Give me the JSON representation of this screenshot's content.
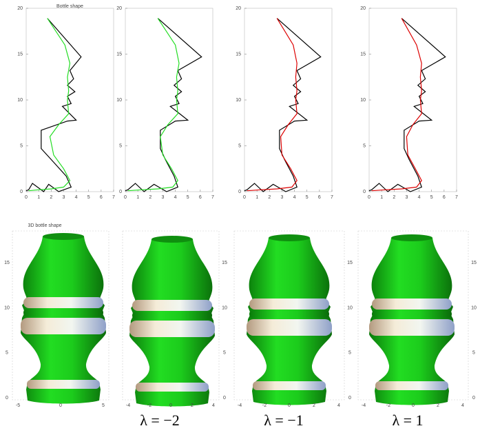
{
  "chart_data": [
    {
      "type": "line",
      "title": "Bottle shape",
      "xlim": [
        0,
        7
      ],
      "ylim": [
        0,
        20
      ],
      "xticks": [
        0,
        1,
        2,
        3,
        4,
        5,
        6,
        7
      ],
      "yticks": [
        0,
        5,
        10,
        15,
        20
      ],
      "series": [
        {
          "color": "#000000",
          "x": [
            1.7,
            4.4,
            3.5,
            3.8,
            3.3,
            3.9,
            3.3,
            3.6,
            2.9,
            4.0,
            3.3,
            1.2,
            1.2,
            2.0,
            3.2,
            3.6,
            2.6,
            1.8,
            1.4,
            0.5,
            0.2,
            0
          ],
          "values": [
            18.9,
            14.7,
            13.2,
            12.3,
            11.6,
            10.9,
            10.4,
            9.6,
            9.3,
            7.8,
            7.7,
            6.7,
            4.7,
            3.5,
            1.7,
            0.5,
            0,
            0.8,
            0,
            0.9,
            0.2,
            0.1
          ]
        },
        {
          "color": "#22dd22",
          "x": [
            1.7,
            3.1,
            3.5,
            3.3,
            3.4,
            3.3,
            3.4,
            2.6,
            1.9,
            2.2,
            3.0,
            3.5,
            3.0,
            2.0,
            1.0,
            0.2
          ],
          "values": [
            18.9,
            16,
            14,
            12.5,
            11,
            10,
            8.5,
            7.3,
            6,
            4,
            2.5,
            1.2,
            0.5,
            0.3,
            0.2,
            0.1
          ]
        }
      ]
    },
    {
      "type": "line",
      "xlim": [
        0,
        7
      ],
      "ylim": [
        0,
        20
      ],
      "xticks": [
        0,
        1,
        2,
        3,
        4,
        5,
        6,
        7
      ],
      "yticks": [
        0,
        5,
        10,
        15,
        20
      ],
      "series": [
        {
          "color": "#000000",
          "x": [
            2.6,
            6.1,
            4.2,
            4.5,
            3.9,
            4.5,
            4.0,
            4.3,
            3.6,
            5.0,
            4.0,
            2.8,
            2.8,
            3.2,
            3.9,
            4.2,
            3.3,
            2.3,
            1.5,
            0.8,
            0.2,
            0
          ],
          "values": [
            18.9,
            14.7,
            13.2,
            12.3,
            11.6,
            10.9,
            10.4,
            9.6,
            9.3,
            7.8,
            7.7,
            6.7,
            4.7,
            3.5,
            1.7,
            0.5,
            0,
            0.8,
            0,
            0.9,
            0.2,
            0.1
          ]
        },
        {
          "color": "#22dd22",
          "x": [
            2.6,
            4.0,
            4.3,
            4.1,
            4.2,
            4.1,
            4.2,
            3.4,
            2.8,
            3.0,
            3.7,
            4.2,
            3.8,
            2.6,
            1.3,
            0.2
          ],
          "values": [
            18.9,
            16,
            14,
            12.5,
            11,
            10,
            8.5,
            7.3,
            6,
            4,
            2.5,
            1.2,
            0.5,
            0.3,
            0.2,
            0.1
          ]
        }
      ]
    },
    {
      "type": "line",
      "xlim": [
        0,
        7
      ],
      "ylim": [
        0,
        20
      ],
      "xticks": [
        0,
        1,
        2,
        3,
        4,
        5,
        6,
        7
      ],
      "yticks": [
        0,
        5,
        10,
        15,
        20
      ],
      "series": [
        {
          "color": "#000000",
          "x": [
            2.6,
            6.1,
            4.2,
            4.5,
            3.9,
            4.5,
            4.0,
            4.3,
            3.6,
            5.0,
            4.0,
            2.8,
            2.8,
            3.2,
            3.9,
            4.2,
            3.3,
            2.3,
            1.5,
            0.8,
            0.2,
            0
          ],
          "values": [
            18.9,
            14.7,
            13.2,
            12.3,
            11.6,
            10.9,
            10.4,
            9.6,
            9.3,
            7.8,
            7.7,
            6.7,
            4.7,
            3.5,
            1.7,
            0.5,
            0,
            0.8,
            0,
            0.9,
            0.2,
            0.1
          ]
        },
        {
          "color": "#dd0000",
          "x": [
            2.6,
            3.9,
            4.2,
            4.1,
            4.2,
            4.1,
            4.2,
            3.5,
            2.9,
            3.0,
            3.7,
            4.2,
            3.8,
            2.6,
            1.3,
            0.2
          ],
          "values": [
            18.9,
            16,
            14,
            12.5,
            11,
            10,
            8.5,
            7.3,
            6,
            4,
            2.5,
            1.2,
            0.5,
            0.3,
            0.2,
            0.1
          ]
        }
      ]
    },
    {
      "type": "line",
      "xlim": [
        0,
        7
      ],
      "ylim": [
        0,
        20
      ],
      "xticks": [
        0,
        1,
        2,
        3,
        4,
        5,
        6,
        7
      ],
      "yticks": [
        0,
        5,
        10,
        15,
        20
      ],
      "series": [
        {
          "color": "#000000",
          "x": [
            2.6,
            6.1,
            4.2,
            4.5,
            3.9,
            4.5,
            4.0,
            4.3,
            3.6,
            5.0,
            4.0,
            2.8,
            2.8,
            3.2,
            3.9,
            4.2,
            3.3,
            2.3,
            1.5,
            0.8,
            0.2,
            0
          ],
          "values": [
            18.9,
            14.7,
            13.2,
            12.3,
            11.6,
            10.9,
            10.4,
            9.6,
            9.3,
            7.8,
            7.7,
            6.7,
            4.7,
            3.5,
            1.7,
            0.5,
            0,
            0.8,
            0,
            0.9,
            0.2,
            0.1
          ]
        },
        {
          "color": "#dd0000",
          "x": [
            2.6,
            3.8,
            4.2,
            4.1,
            4.2,
            4.1,
            4.2,
            3.5,
            3.0,
            3.1,
            3.7,
            4.2,
            3.8,
            2.6,
            1.3,
            0.2
          ],
          "values": [
            18.9,
            16,
            14,
            12.5,
            11,
            10,
            8.5,
            7.3,
            6,
            4,
            2.5,
            1.2,
            0.5,
            0.3,
            0.2,
            0.1
          ]
        }
      ]
    }
  ],
  "renders": [
    {
      "title": "3D bottle shape",
      "zticks": [
        0,
        5,
        10,
        15
      ],
      "xticks": [
        -5,
        0,
        5
      ]
    },
    {
      "zticks": [
        0,
        5,
        10,
        15
      ],
      "xticks": [
        -4,
        -2,
        0,
        2,
        4
      ]
    },
    {
      "zticks": [
        0,
        5,
        10,
        15
      ],
      "xticks": [
        -4,
        -2,
        0,
        2,
        4
      ]
    },
    {
      "zticks": [
        0,
        5,
        10,
        15
      ],
      "xticks": [
        -4,
        -2,
        0,
        2,
        4
      ]
    }
  ],
  "captions": [
    "λ = −2",
    "λ = −1",
    "λ = 1"
  ]
}
